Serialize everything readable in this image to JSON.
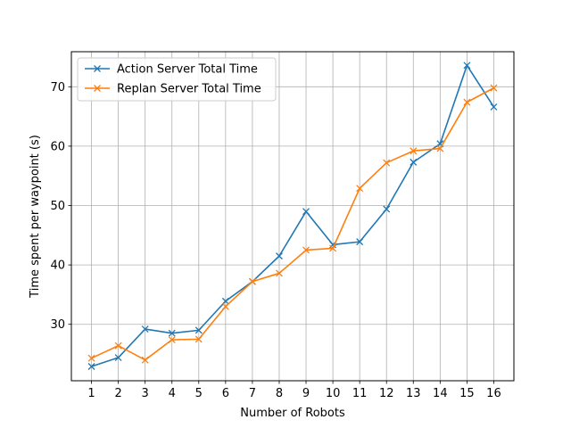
{
  "chart_data": {
    "type": "line",
    "title": "",
    "xlabel": "Number of Robots",
    "ylabel": "Time spent per waypoint (s)",
    "x": [
      1,
      2,
      3,
      4,
      5,
      6,
      7,
      8,
      9,
      10,
      11,
      12,
      13,
      14,
      15,
      16
    ],
    "xlim": [
      0.25,
      16.75
    ],
    "ylim": [
      20.5,
      75.9
    ],
    "yticks": [
      30,
      40,
      50,
      60,
      70
    ],
    "grid": true,
    "legend_position": "upper-left",
    "marker": "x",
    "series": [
      {
        "name": "Action Server Total Time",
        "color": "#1f77b4",
        "values": [
          22.9,
          24.4,
          29.2,
          28.5,
          29.0,
          33.9,
          37.2,
          41.5,
          49.0,
          43.4,
          43.9,
          49.4,
          57.3,
          60.4,
          73.6,
          66.6
        ]
      },
      {
        "name": "Replan Server Total Time",
        "color": "#ff7f0e",
        "values": [
          24.3,
          26.4,
          24.0,
          27.4,
          27.5,
          33.0,
          37.2,
          38.6,
          42.5,
          42.8,
          52.9,
          57.2,
          59.2,
          59.6,
          67.4,
          69.8
        ]
      }
    ]
  }
}
